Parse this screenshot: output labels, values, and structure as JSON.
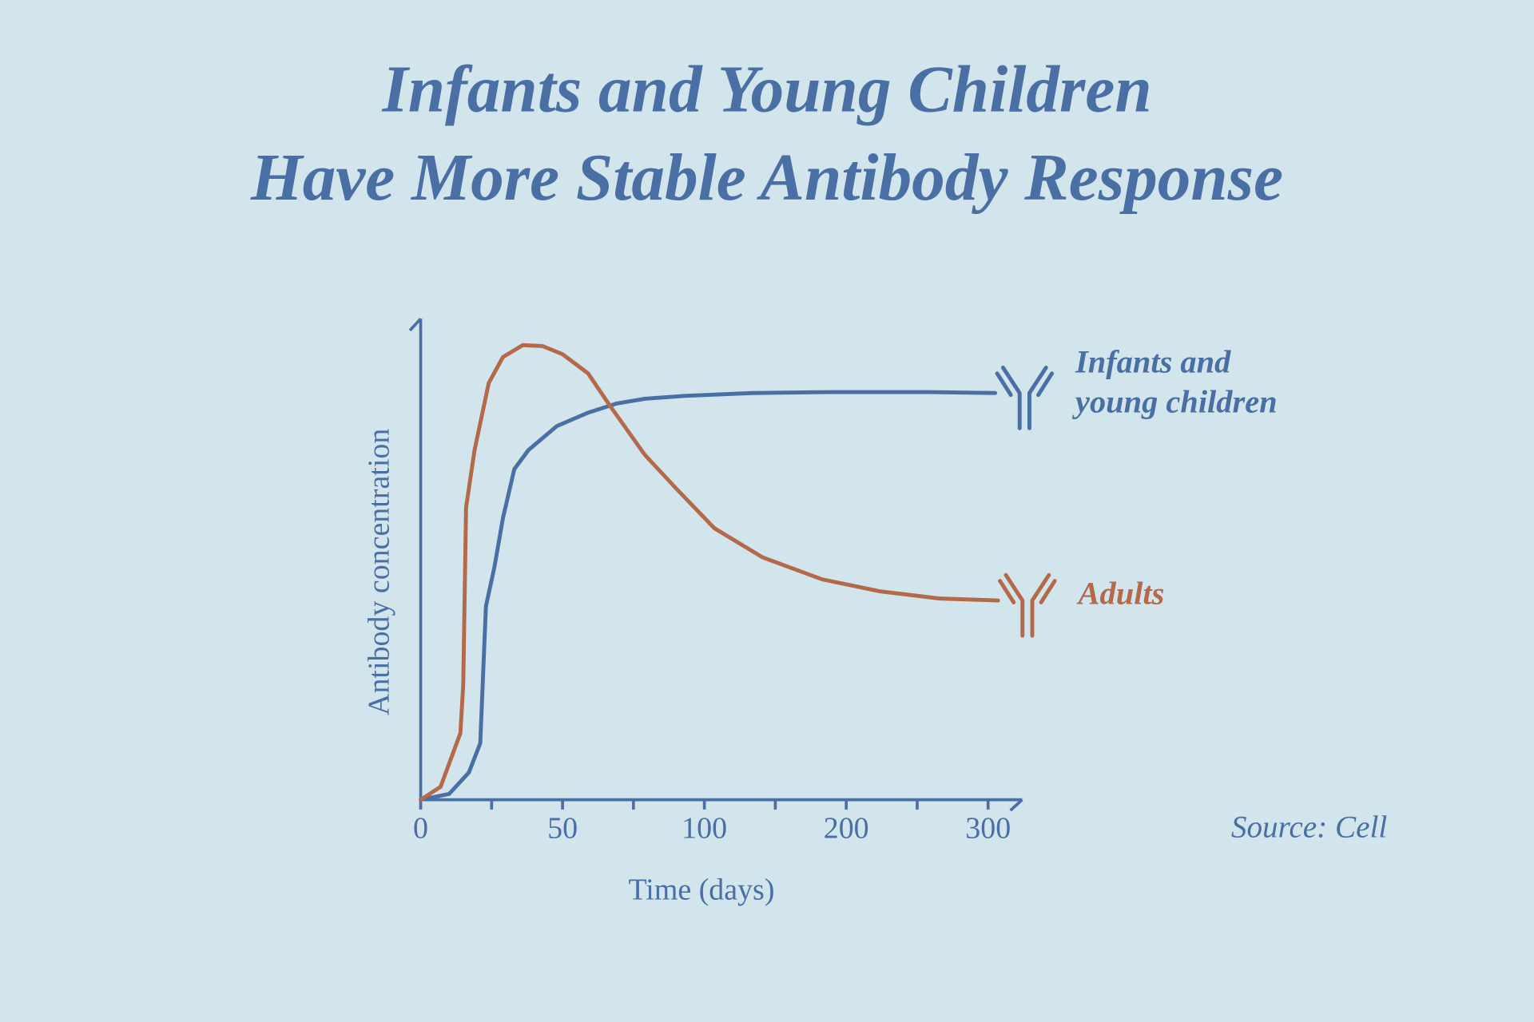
{
  "chart_data": {
    "type": "line",
    "title": "Infants and Young Children\nHave More Stable Antibody Response",
    "x_label": "Time (days)",
    "y_label": "Antibody concentration",
    "source": "Source: Cell",
    "xlim": [
      0,
      324
    ],
    "xticks": [
      0,
      50,
      100,
      200,
      300
    ],
    "xticks_minor": [
      25,
      75,
      150,
      250
    ],
    "ylim": [
      0,
      100
    ],
    "series": [
      {
        "name": "Infants and\nyoung children",
        "color": "#4a6fa5",
        "x": [
          0,
          10,
          17,
          21,
          23,
          26,
          29,
          33,
          38,
          48,
          59,
          69,
          79,
          93,
          134,
          190,
          258,
          305
        ],
        "values": [
          0,
          1.2,
          5.7,
          11.8,
          40.4,
          48.6,
          58.8,
          69,
          73,
          78,
          80.8,
          82.7,
          83.7,
          84.3,
          84.9,
          85.1,
          85.1,
          84.9
        ]
      },
      {
        "name": "Adults",
        "color": "#b4694a",
        "x": [
          0,
          7,
          14,
          15,
          16,
          19,
          24,
          29,
          36,
          43,
          50,
          59,
          67,
          79,
          90,
          107,
          141,
          183,
          224,
          266,
          307
        ],
        "values": [
          0,
          2.7,
          13.9,
          24,
          61,
          73,
          87,
          92.4,
          94.9,
          94.7,
          93,
          89,
          82,
          72,
          65,
          56.7,
          50.6,
          46,
          43.5,
          42,
          41.6
        ]
      }
    ]
  }
}
